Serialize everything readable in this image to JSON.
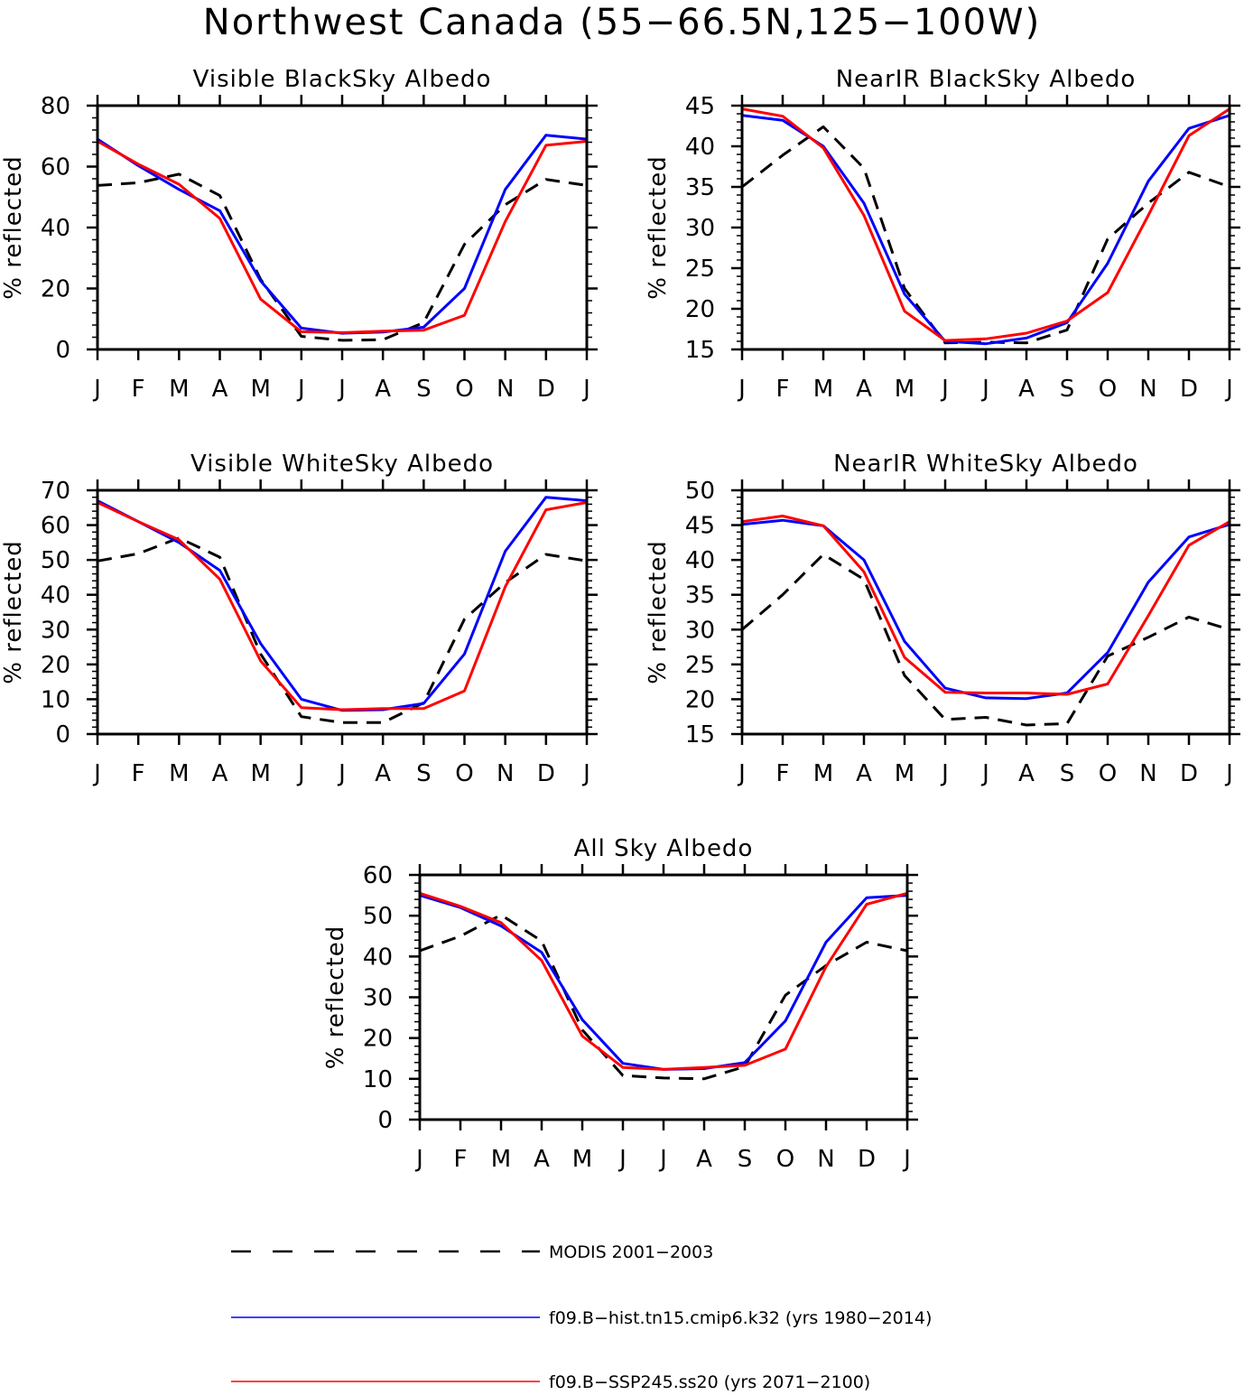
{
  "title": "Northwest Canada (55−66.5N,125−100W)",
  "legend": [
    {
      "label": "MODIS 2001−2003",
      "color": "#000000",
      "dash": true
    },
    {
      "label": "f09.B−hist.tn15.cmip6.k32 (yrs 1980−2014)",
      "color": "#0000ff",
      "dash": false
    },
    {
      "label": "f09.B−SSP245.ss20 (yrs 2071−2100)",
      "color": "#ff0000",
      "dash": false
    }
  ],
  "chart_data": [
    {
      "type": "line",
      "title": "Visible BlackSky Albedo",
      "ylabel": "% reflected",
      "categories": [
        "J",
        "F",
        "M",
        "A",
        "M",
        "J",
        "J",
        "A",
        "S",
        "O",
        "N",
        "D",
        "J"
      ],
      "ylim": [
        0,
        80
      ],
      "yticks": [
        0,
        20,
        40,
        60,
        80
      ],
      "series": [
        {
          "name": "MODIS 2001−2003",
          "color": "#000000",
          "values": [
            53.8,
            54.7,
            57.5,
            50.5,
            23.0,
            4.3,
            3.0,
            3.2,
            8.8,
            34.5,
            47.5,
            55.8,
            53.8
          ]
        },
        {
          "name": "f09.B−hist.tn15.cmip6.k32 (yrs 1980−2014)",
          "color": "#0000ff",
          "values": [
            69.0,
            60.3,
            52.5,
            45.5,
            22.5,
            7.0,
            5.3,
            5.7,
            7.3,
            20.0,
            52.5,
            70.3,
            69.0
          ]
        },
        {
          "name": "f09.B−SSP245.ss20 (yrs 2071−2100)",
          "color": "#ff0000",
          "values": [
            68.3,
            60.8,
            54.2,
            43.0,
            16.5,
            5.8,
            5.5,
            6.0,
            6.3,
            11.2,
            42.0,
            67.0,
            68.3
          ]
        }
      ]
    },
    {
      "type": "line",
      "title": "NearIR BlackSky Albedo",
      "ylabel": "% reflected",
      "categories": [
        "J",
        "F",
        "M",
        "A",
        "M",
        "J",
        "J",
        "A",
        "S",
        "O",
        "N",
        "D",
        "J"
      ],
      "ylim": [
        15,
        45
      ],
      "yticks": [
        15,
        20,
        25,
        30,
        35,
        40,
        45
      ],
      "series": [
        {
          "name": "MODIS 2001−2003",
          "color": "#000000",
          "values": [
            35.0,
            38.9,
            42.4,
            37.3,
            22.5,
            15.8,
            15.9,
            15.8,
            17.4,
            28.6,
            33.0,
            36.8,
            35.0
          ]
        },
        {
          "name": "f09.B−hist.tn15.cmip6.k32 (yrs 1980−2014)",
          "color": "#0000ff",
          "values": [
            43.8,
            43.2,
            40.0,
            33.0,
            21.8,
            16.0,
            15.7,
            16.4,
            18.3,
            25.6,
            35.7,
            42.2,
            43.8
          ]
        },
        {
          "name": "f09.B−SSP245.ss20 (yrs 2071−2100)",
          "color": "#ff0000",
          "values": [
            44.6,
            43.7,
            39.8,
            31.5,
            19.7,
            16.1,
            16.3,
            17.0,
            18.5,
            22.0,
            31.5,
            41.3,
            44.6
          ]
        }
      ]
    },
    {
      "type": "line",
      "title": "Visible WhiteSky Albedo",
      "ylabel": "% reflected",
      "categories": [
        "J",
        "F",
        "M",
        "A",
        "M",
        "J",
        "J",
        "A",
        "S",
        "O",
        "N",
        "D",
        "J"
      ],
      "ylim": [
        0,
        70
      ],
      "yticks": [
        0,
        10,
        20,
        30,
        40,
        50,
        60,
        70
      ],
      "series": [
        {
          "name": "MODIS 2001−2003",
          "color": "#000000",
          "values": [
            49.7,
            51.8,
            56.3,
            50.8,
            23.0,
            5.0,
            3.3,
            3.3,
            9.0,
            33.0,
            43.5,
            51.6,
            49.7
          ]
        },
        {
          "name": "f09.B−hist.tn15.cmip6.k32 (yrs 1980−2014)",
          "color": "#0000ff",
          "values": [
            67.0,
            61.0,
            55.0,
            47.0,
            26.0,
            10.0,
            6.8,
            7.0,
            8.8,
            23.0,
            52.5,
            68.0,
            67.0
          ]
        },
        {
          "name": "f09.B−SSP245.ss20 (yrs 2071−2100)",
          "color": "#ff0000",
          "values": [
            66.5,
            61.0,
            55.8,
            44.5,
            21.0,
            7.6,
            7.0,
            7.3,
            7.3,
            12.4,
            42.3,
            64.4,
            66.5
          ]
        }
      ]
    },
    {
      "type": "line",
      "title": "NearIR WhiteSky Albedo",
      "ylabel": "% reflected",
      "categories": [
        "J",
        "F",
        "M",
        "A",
        "M",
        "J",
        "J",
        "A",
        "S",
        "O",
        "N",
        "D",
        "J"
      ],
      "ylim": [
        15,
        50
      ],
      "yticks": [
        15,
        20,
        25,
        30,
        35,
        40,
        45,
        50
      ],
      "series": [
        {
          "name": "MODIS 2001−2003",
          "color": "#000000",
          "values": [
            30.0,
            35.0,
            40.8,
            37.2,
            23.4,
            17.1,
            17.4,
            16.3,
            16.5,
            26.2,
            28.9,
            31.8,
            30.0
          ]
        },
        {
          "name": "f09.B−hist.tn15.cmip6.k32 (yrs 1980−2014)",
          "color": "#0000ff",
          "values": [
            45.1,
            45.7,
            44.9,
            40.0,
            28.3,
            21.6,
            20.2,
            20.1,
            20.9,
            26.7,
            36.8,
            43.3,
            45.1
          ]
        },
        {
          "name": "f09.B−SSP245.ss20 (yrs 2071−2100)",
          "color": "#ff0000",
          "values": [
            45.5,
            46.3,
            44.9,
            38.3,
            26.0,
            21.0,
            20.9,
            20.9,
            20.7,
            22.2,
            32.0,
            42.1,
            45.5
          ]
        }
      ]
    },
    {
      "type": "line",
      "title": "All Sky Albedo",
      "ylabel": "% reflected",
      "categories": [
        "J",
        "F",
        "M",
        "A",
        "M",
        "J",
        "J",
        "A",
        "S",
        "O",
        "N",
        "D",
        "J"
      ],
      "ylim": [
        0,
        60
      ],
      "yticks": [
        0,
        10,
        20,
        30,
        40,
        50,
        60
      ],
      "series": [
        {
          "name": "MODIS 2001−2003",
          "color": "#000000",
          "values": [
            41.4,
            45.0,
            50.2,
            43.8,
            22.0,
            10.8,
            10.2,
            10.0,
            13.0,
            30.5,
            37.8,
            43.5,
            41.4
          ]
        },
        {
          "name": "f09.B−hist.tn15.cmip6.k32 (yrs 1980−2014)",
          "color": "#0000ff",
          "values": [
            55.0,
            52.0,
            47.5,
            41.0,
            24.5,
            13.8,
            12.3,
            12.5,
            14.0,
            24.2,
            43.5,
            54.4,
            55.0
          ]
        },
        {
          "name": "f09.B−SSP245.ss20 (yrs 2071−2100)",
          "color": "#ff0000",
          "values": [
            55.5,
            52.3,
            48.3,
            39.0,
            20.5,
            12.8,
            12.3,
            12.8,
            13.3,
            17.3,
            37.5,
            52.8,
            55.5
          ]
        }
      ]
    }
  ]
}
